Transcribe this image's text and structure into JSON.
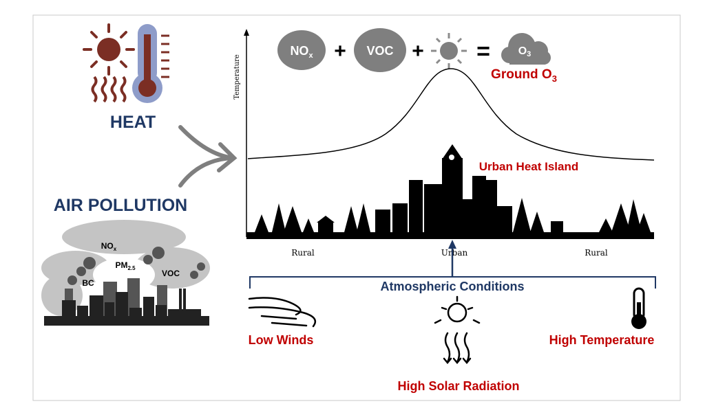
{
  "left": {
    "heat_label": "HEAT",
    "air_pollution_label": "AIR POLLUTION",
    "pollutants": {
      "nox": "NO",
      "nox_sub": "x",
      "pm": "PM",
      "pm_sub": "2.5",
      "voc": "VOC",
      "bc": "BC"
    }
  },
  "equation": {
    "nox": "NO",
    "nox_sub": "x",
    "plus": "+",
    "voc": "VOC",
    "equals": "=",
    "o3": "O",
    "o3_sub": "3",
    "result_label": "Ground O",
    "result_sub": "3"
  },
  "profile": {
    "ylabel": "Temperature",
    "x_labels": [
      "Rural",
      "Urban",
      "Rural"
    ],
    "peak_label": "Urban Heat Island"
  },
  "conditions": {
    "title": "Atmospheric Conditions",
    "items": [
      "Low Winds",
      "High Solar Radiation",
      "High Temperature"
    ]
  },
  "colors": {
    "red": "#c00000",
    "navy": "#1f3864",
    "gray": "#7f7f7f",
    "heat_brown": "#7b2e24",
    "thermo_blue": "#8e9cc9"
  }
}
